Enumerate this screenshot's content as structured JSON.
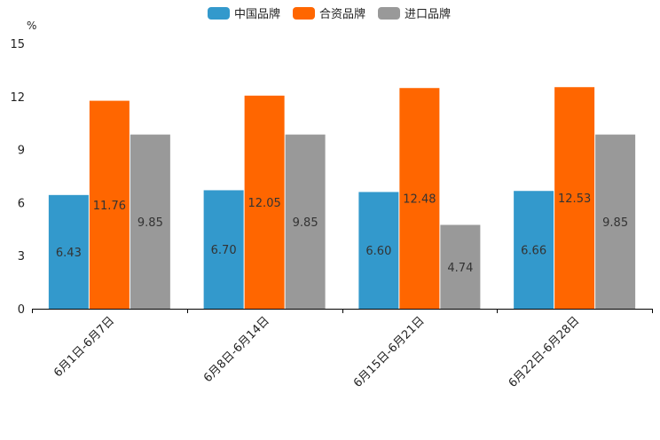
{
  "chart_data": {
    "type": "bar",
    "unit": "%",
    "categories": [
      "6月1日-6月7日",
      "6月8日-6月14日",
      "6月15日-6月21日",
      "6月22日-6月28日"
    ],
    "series": [
      {
        "name": "中国品牌",
        "color": "#3399cc",
        "values": [
          6.43,
          6.7,
          6.6,
          6.66
        ]
      },
      {
        "name": "合资品牌",
        "color": "#ff6600",
        "values": [
          11.76,
          12.05,
          12.48,
          12.53
        ]
      },
      {
        "name": "进口品牌",
        "color": "#999999",
        "values": [
          9.85,
          9.85,
          4.74,
          9.85
        ]
      }
    ],
    "ylim": [
      0,
      15
    ],
    "yticks": [
      0,
      3,
      6,
      9,
      12,
      15
    ],
    "legend": "top-center",
    "grid": false
  }
}
